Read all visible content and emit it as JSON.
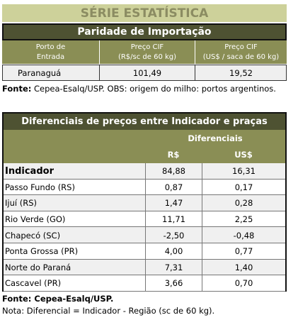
{
  "header": {
    "title": "SÉRIE ESTATÍSTICA"
  },
  "table1": {
    "title": "Paridade de Importação",
    "columns": [
      [
        "Porto de",
        "Entrada"
      ],
      [
        "Preço CIF",
        "(R$/sc de 60 kg)"
      ],
      [
        "Preço CIF",
        "(US$ / saca de 60 kg)"
      ]
    ],
    "rows": [
      [
        "Paranaguá",
        "101,49",
        "19,52"
      ]
    ]
  },
  "note1": {
    "label": "Fonte:",
    "text": "Cepea-Esalq/USP. OBS: origem do milho: portos argentinos."
  },
  "table2": {
    "title": "Diferenciais de preços entre Indicador e praças",
    "group_header": "Diferenciais",
    "columns": [
      "R$",
      "US$"
    ],
    "rows": [
      [
        "Indicador",
        "84,88",
        "16,31"
      ],
      [
        "Passo Fundo (RS)",
        "0,87",
        "0,17"
      ],
      [
        "Ijuí (RS)",
        "1,47",
        "0,28"
      ],
      [
        "Rio Verde (GO)",
        "11,71",
        "2,25"
      ],
      [
        "Chapecó (SC)",
        "-2,50",
        "-0,48"
      ],
      [
        "Ponta Grossa (PR)",
        "4,00",
        "0,77"
      ],
      [
        "Norte do Paraná",
        "7,31",
        "1,40"
      ],
      [
        "Cascavel (PR)",
        "3,66",
        "0,70"
      ]
    ]
  },
  "footer": {
    "source": "Fonte: Cepea-Esalq/USP.",
    "note": "Nota: Diferencial = Indicador - Região (sc de 60 kg)."
  }
}
